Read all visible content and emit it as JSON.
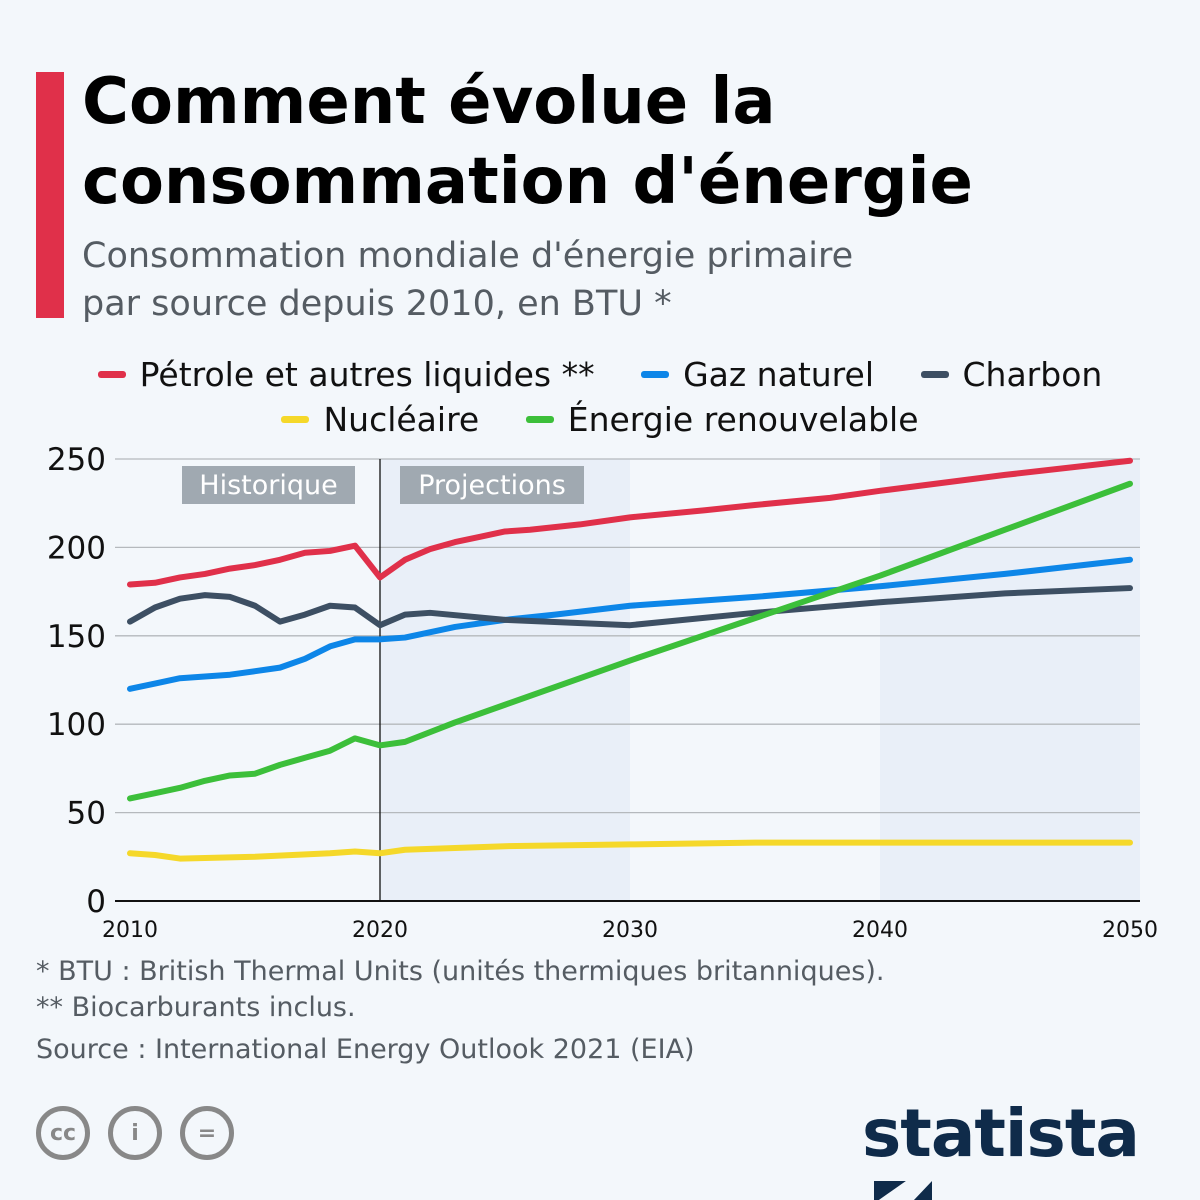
{
  "title": "Comment évolue la consommation d'énergie",
  "subtitle_line1": "Consommation mondiale d'énergie primaire",
  "subtitle_line2": "par source depuis 2010, en BTU *",
  "footnotes": [
    "*   BTU : British Thermal Units (unités thermiques britanniques).",
    "** Biocarburants inclus."
  ],
  "source": "Source : International Energy Outlook 2021 (EIA)",
  "brand": "statista",
  "license_icons": [
    "cc-icon",
    "attribution-icon",
    "no-derivatives-icon"
  ],
  "chart_data": {
    "type": "line",
    "xlim": [
      2010,
      2050
    ],
    "ylim": [
      0,
      250
    ],
    "x_ticks": [
      "2010",
      "2020",
      "2030",
      "2040",
      "2050"
    ],
    "y_ticks": [
      "0",
      "50",
      "100",
      "150",
      "200",
      "250"
    ],
    "grid": true,
    "legend_placement": "top",
    "annotations": [
      "Historique",
      "Projections"
    ],
    "projection_start": 2020,
    "series": [
      {
        "name": "Pétrole et autres liquides **",
        "color": "#e0304a",
        "x": [
          2010,
          2011,
          2012,
          2013,
          2014,
          2015,
          2016,
          2017,
          2018,
          2019,
          2020,
          2021,
          2022,
          2023,
          2024,
          2025,
          2026,
          2028,
          2030,
          2033,
          2035,
          2038,
          2040,
          2045,
          2050
        ],
        "y": [
          179,
          180,
          183,
          185,
          188,
          190,
          193,
          197,
          198,
          201,
          183,
          193,
          199,
          203,
          206,
          209,
          210,
          213,
          217,
          221,
          224,
          228,
          232,
          241,
          249
        ]
      },
      {
        "name": "Gaz naturel",
        "color": "#0d86e8",
        "x": [
          2010,
          2011,
          2012,
          2013,
          2014,
          2015,
          2016,
          2017,
          2018,
          2019,
          2020,
          2021,
          2023,
          2025,
          2027,
          2030,
          2035,
          2040,
          2045,
          2050
        ],
        "y": [
          120,
          123,
          126,
          127,
          128,
          130,
          132,
          137,
          144,
          148,
          148,
          149,
          155,
          159,
          162,
          167,
          172,
          178,
          185,
          193
        ]
      },
      {
        "name": "Charbon",
        "color": "#3d4f63",
        "x": [
          2010,
          2011,
          2012,
          2013,
          2014,
          2015,
          2016,
          2017,
          2018,
          2019,
          2020,
          2021,
          2022,
          2025,
          2030,
          2035,
          2040,
          2045,
          2050
        ],
        "y": [
          158,
          166,
          171,
          173,
          172,
          167,
          158,
          162,
          167,
          166,
          156,
          162,
          163,
          159,
          156,
          163,
          169,
          174,
          177
        ]
      },
      {
        "name": "Nucléaire",
        "color": "#f5d82a",
        "x": [
          2010,
          2011,
          2012,
          2015,
          2018,
          2019,
          2020,
          2021,
          2025,
          2030,
          2035,
          2040,
          2045,
          2050
        ],
        "y": [
          27,
          26,
          24,
          25,
          27,
          28,
          27,
          29,
          31,
          32,
          33,
          33,
          33,
          33
        ]
      },
      {
        "name": "Énergie renouvelable",
        "color": "#3cbf3a",
        "x": [
          2010,
          2011,
          2012,
          2013,
          2014,
          2015,
          2016,
          2017,
          2018,
          2019,
          2020,
          2021,
          2023,
          2025,
          2030,
          2035,
          2040,
          2045,
          2050
        ],
        "y": [
          58,
          61,
          64,
          68,
          71,
          72,
          77,
          81,
          85,
          92,
          88,
          90,
          101,
          111,
          136,
          160,
          184,
          210,
          236
        ]
      }
    ]
  }
}
